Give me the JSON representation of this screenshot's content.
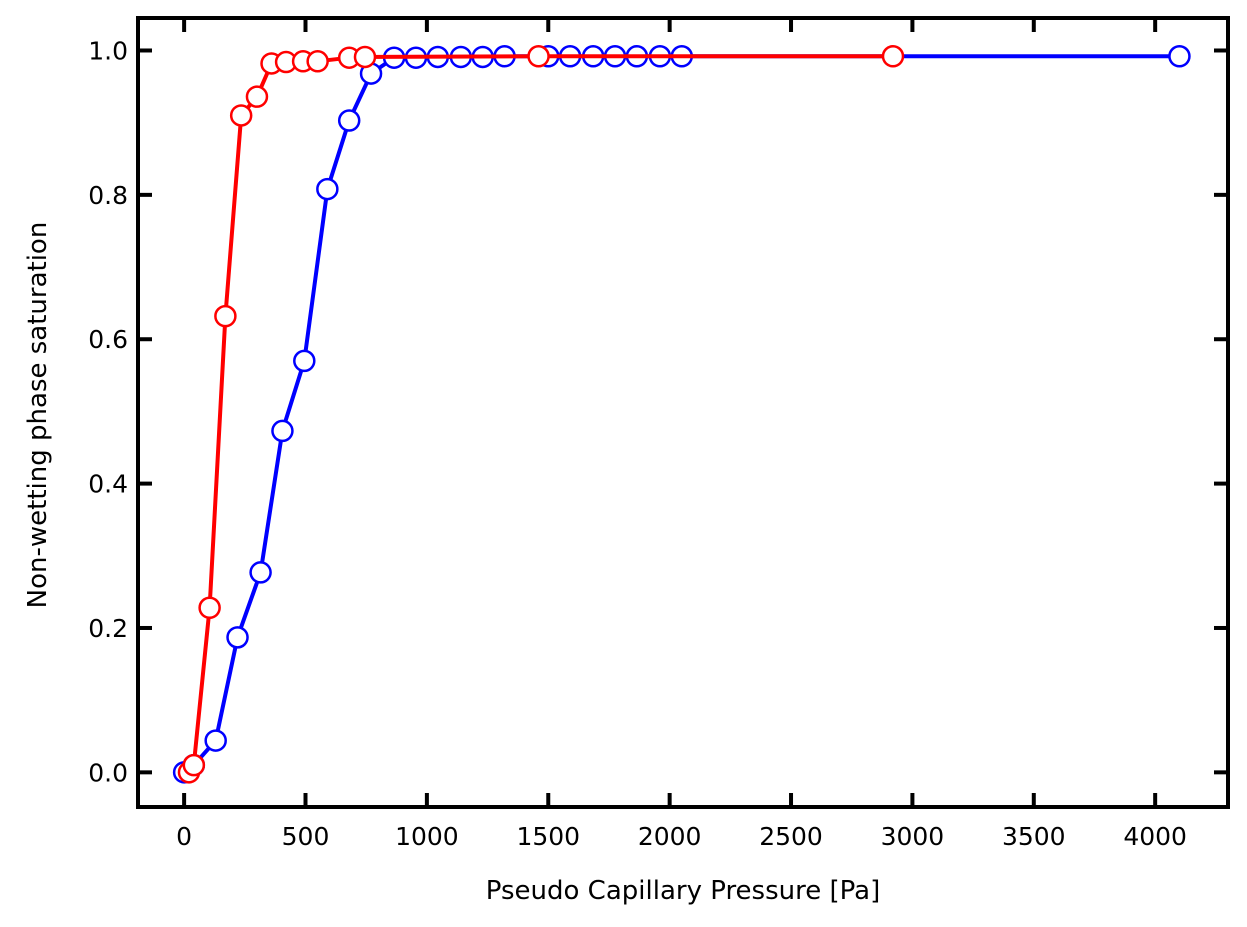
{
  "chart_data": {
    "type": "line",
    "title": "",
    "xlabel": "Pseudo Capillary Pressure [Pa]",
    "ylabel": "Non-wetting phase saturation",
    "xlim": [
      -190,
      4300
    ],
    "ylim": [
      -0.048,
      1.045
    ],
    "xticks": [
      0,
      500,
      1000,
      1500,
      2000,
      2500,
      3000,
      3500,
      4000
    ],
    "yticks": [
      0.0,
      0.2,
      0.4,
      0.6,
      0.8,
      1.0
    ],
    "xtick_labels": [
      "0",
      "500",
      "1000",
      "1500",
      "2000",
      "2500",
      "3000",
      "3500",
      "4000"
    ],
    "ytick_labels": [
      "0.0",
      "0.2",
      "0.4",
      "0.6",
      "0.8",
      "1.0"
    ],
    "grid": false,
    "legend": "none",
    "series": [
      {
        "color": "#0000ff",
        "marker": "open-circle",
        "x": [
          0,
          40,
          130,
          220,
          315,
          405,
          495,
          590,
          680,
          770,
          865,
          955,
          1045,
          1140,
          1230,
          1320,
          1500,
          1590,
          1685,
          1775,
          1865,
          1960,
          2050,
          4100
        ],
        "y": [
          0.0,
          0.01,
          0.044,
          0.187,
          0.277,
          0.473,
          0.57,
          0.808,
          0.903,
          0.968,
          0.99,
          0.99,
          0.991,
          0.991,
          0.991,
          0.992,
          0.992,
          0.992,
          0.992,
          0.992,
          0.992,
          0.992,
          0.992,
          0.992
        ]
      },
      {
        "color": "#ff0000",
        "marker": "open-circle",
        "x": [
          20,
          40,
          105,
          170,
          235,
          300,
          360,
          420,
          490,
          550,
          680,
          745,
          1460,
          2920
        ],
        "y": [
          0.0,
          0.01,
          0.228,
          0.632,
          0.91,
          0.936,
          0.982,
          0.984,
          0.985,
          0.985,
          0.99,
          0.991,
          0.992,
          0.992
        ]
      }
    ]
  }
}
